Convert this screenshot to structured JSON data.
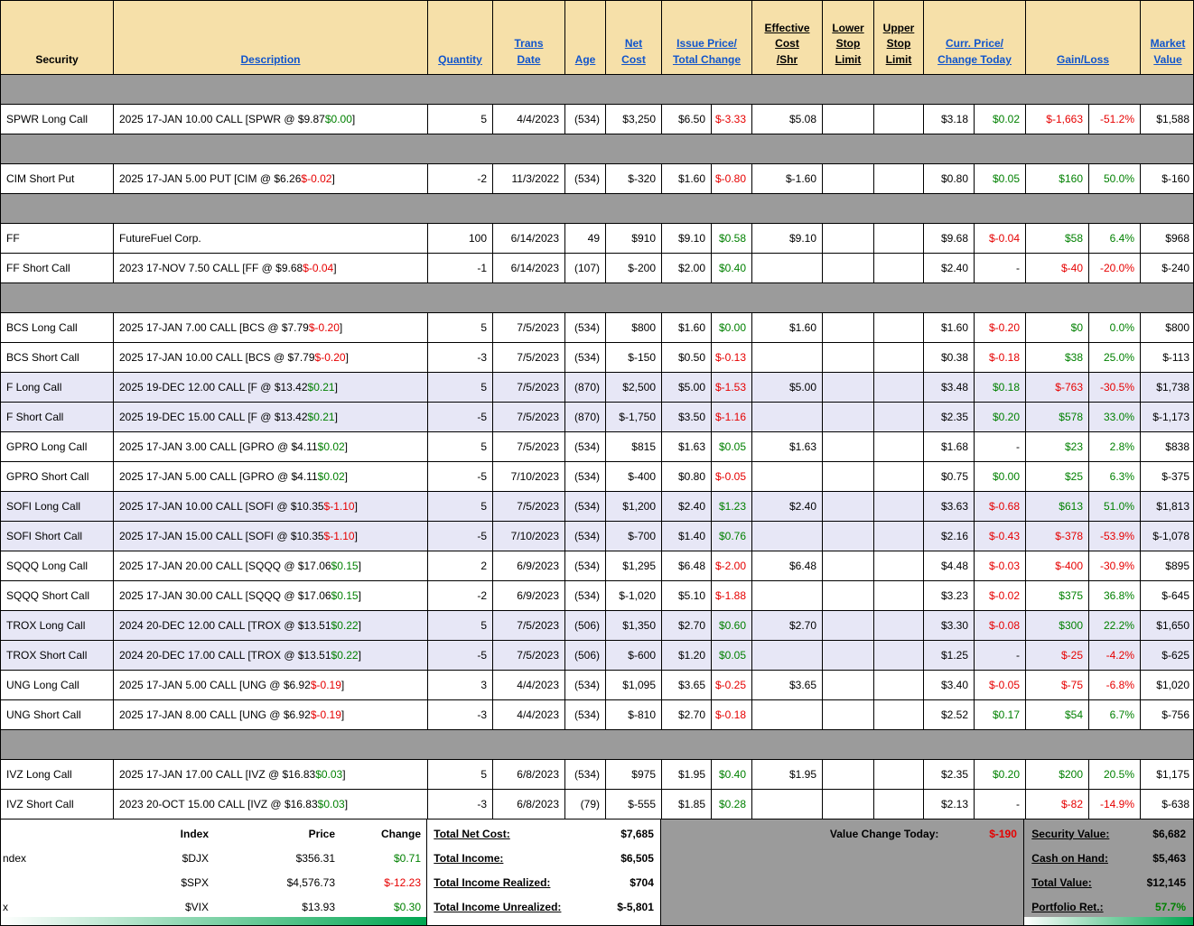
{
  "colors": {
    "pos": "#008000",
    "neg": "#e60000",
    "link": "#1155cc",
    "band": "#9b9b9b",
    "header_bg": "#f6e0a9",
    "lav": "#e7e7f6",
    "strip_green": "#00a651"
  },
  "header": {
    "columns": [
      {
        "label": "Security"
      },
      {
        "label": "Description"
      },
      {
        "label": "Quantity"
      },
      {
        "label": "Trans\nDate"
      },
      {
        "label": "Age"
      },
      {
        "label": "Net\nCost"
      },
      {
        "label": "Issue Price/\nTotal Change"
      },
      {
        "label": "Effective\nCost\n/Shr"
      },
      {
        "label": "Lower\nStop\nLimit"
      },
      {
        "label": "Upper\nStop\nLimit"
      },
      {
        "label": "Curr. Price/\nChange Today"
      },
      {
        "label": "Gain/Loss"
      },
      {
        "label": "Market\nValue"
      }
    ]
  },
  "rows": [
    {
      "type": "band"
    },
    {
      "bg": "white",
      "sec": "SPWR Long Call",
      "desc_pre": "2025 17-JAN 10.00 CALL [SPWR @ $9.87 ",
      "desc_chg": "$0.00",
      "desc_post": "]",
      "qty": "5",
      "date": "4/4/2023",
      "age": "(534)",
      "net": "$3,250",
      "iprice": "$6.50",
      "ichg": "$-3.33",
      "eff": "$5.08",
      "lower": "",
      "upper": "",
      "cprice": "$3.18",
      "cchg": "$0.02",
      "gain": "$-1,663",
      "gpct": "-51.2%",
      "mkt": "$1,588"
    },
    {
      "type": "band"
    },
    {
      "bg": "white",
      "sec": "CIM Short Put",
      "desc_pre": "2025 17-JAN 5.00 PUT [CIM @ $6.26 ",
      "desc_chg": "$-0.02",
      "desc_post": "]",
      "qty": "-2",
      "date": "11/3/2022",
      "age": "(534)",
      "net": "$-320",
      "iprice": "$1.60",
      "ichg": "$-0.80",
      "eff": "$-1.60",
      "lower": "",
      "upper": "",
      "cprice": "$0.80",
      "cchg": "$0.05",
      "gain": "$160",
      "gpct": "50.0%",
      "mkt": "$-160"
    },
    {
      "type": "band"
    },
    {
      "bg": "white",
      "sec": "FF",
      "desc_pre": "FutureFuel Corp.",
      "desc_chg": "",
      "desc_post": "",
      "qty": "100",
      "date": "6/14/2023",
      "age": "49",
      "net": "$910",
      "iprice": "$9.10",
      "ichg": "$0.58",
      "eff": "$9.10",
      "lower": "",
      "upper": "",
      "cprice": "$9.68",
      "cchg": "$-0.04",
      "gain": "$58",
      "gpct": "6.4%",
      "mkt": "$968"
    },
    {
      "bg": "white",
      "sec": "FF Short Call",
      "desc_pre": "2023 17-NOV 7.50 CALL [FF @ $9.68 ",
      "desc_chg": "$-0.04",
      "desc_post": "]",
      "qty": "-1",
      "date": "6/14/2023",
      "age": "(107)",
      "net": "$-200",
      "iprice": "$2.00",
      "ichg": "$0.40",
      "eff": "",
      "lower": "",
      "upper": "",
      "cprice": "$2.40",
      "cchg": "-",
      "gain": "$-40",
      "gpct": "-20.0%",
      "mkt": "$-240"
    },
    {
      "type": "band"
    },
    {
      "bg": "white",
      "sec": "BCS Long Call",
      "desc_pre": "2025 17-JAN 7.00 CALL [BCS @ $7.79 ",
      "desc_chg": "$-0.20",
      "desc_post": "]",
      "qty": "5",
      "date": "7/5/2023",
      "age": "(534)",
      "net": "$800",
      "iprice": "$1.60",
      "ichg": "$0.00",
      "eff": "$1.60",
      "lower": "",
      "upper": "",
      "cprice": "$1.60",
      "cchg": "$-0.20",
      "gain": "$0",
      "gpct": "0.0%",
      "mkt": "$800"
    },
    {
      "bg": "white",
      "sec": "BCS Short Call",
      "desc_pre": "2025 17-JAN 10.00 CALL [BCS @ $7.79 ",
      "desc_chg": "$-0.20",
      "desc_post": "]",
      "qty": "-3",
      "date": "7/5/2023",
      "age": "(534)",
      "net": "$-150",
      "iprice": "$0.50",
      "ichg": "$-0.13",
      "eff": "",
      "lower": "",
      "upper": "",
      "cprice": "$0.38",
      "cchg": "$-0.18",
      "gain": "$38",
      "gpct": "25.0%",
      "mkt": "$-113"
    },
    {
      "bg": "lavender",
      "sec": "F Long Call",
      "desc_pre": "2025 19-DEC 12.00 CALL [F @ $13.42 ",
      "desc_chg": "$0.21",
      "desc_post": "]",
      "qty": "5",
      "date": "7/5/2023",
      "age": "(870)",
      "net": "$2,500",
      "iprice": "$5.00",
      "ichg": "$-1.53",
      "eff": "$5.00",
      "lower": "",
      "upper": "",
      "cprice": "$3.48",
      "cchg": "$0.18",
      "gain": "$-763",
      "gpct": "-30.5%",
      "mkt": "$1,738"
    },
    {
      "bg": "lavender",
      "sec": "F Short Call",
      "desc_pre": "2025 19-DEC 15.00 CALL [F @ $13.42 ",
      "desc_chg": "$0.21",
      "desc_post": "]",
      "qty": "-5",
      "date": "7/5/2023",
      "age": "(870)",
      "net": "$-1,750",
      "iprice": "$3.50",
      "ichg": "$-1.16",
      "eff": "",
      "lower": "",
      "upper": "",
      "cprice": "$2.35",
      "cchg": "$0.20",
      "gain": "$578",
      "gpct": "33.0%",
      "mkt": "$-1,173"
    },
    {
      "bg": "white",
      "sec": "GPRO Long Call",
      "desc_pre": "2025 17-JAN 3.00 CALL [GPRO @ $4.11 ",
      "desc_chg": "$0.02",
      "desc_post": "]",
      "qty": "5",
      "date": "7/5/2023",
      "age": "(534)",
      "net": "$815",
      "iprice": "$1.63",
      "ichg": "$0.05",
      "eff": "$1.63",
      "lower": "",
      "upper": "",
      "cprice": "$1.68",
      "cchg": "-",
      "gain": "$23",
      "gpct": "2.8%",
      "mkt": "$838"
    },
    {
      "bg": "white",
      "sec": "GPRO Short Call",
      "desc_pre": "2025 17-JAN 5.00 CALL [GPRO @ $4.11 ",
      "desc_chg": "$0.02",
      "desc_post": "]",
      "qty": "-5",
      "date": "7/10/2023",
      "age": "(534)",
      "net": "$-400",
      "iprice": "$0.80",
      "ichg": "$-0.05",
      "eff": "",
      "lower": "",
      "upper": "",
      "cprice": "$0.75",
      "cchg": "$0.00",
      "gain": "$25",
      "gpct": "6.3%",
      "mkt": "$-375"
    },
    {
      "bg": "lavender",
      "sec": "SOFI Long Call",
      "desc_pre": "2025 17-JAN 10.00 CALL [SOFI @ $10.35 ",
      "desc_chg": "$-1.10",
      "desc_post": "]",
      "qty": "5",
      "date": "7/5/2023",
      "age": "(534)",
      "net": "$1,200",
      "iprice": "$2.40",
      "ichg": "$1.23",
      "eff": "$2.40",
      "lower": "",
      "upper": "",
      "cprice": "$3.63",
      "cchg": "$-0.68",
      "gain": "$613",
      "gpct": "51.0%",
      "mkt": "$1,813"
    },
    {
      "bg": "lavender",
      "sec": "SOFI Short Call",
      "desc_pre": "2025 17-JAN 15.00 CALL [SOFI @ $10.35 ",
      "desc_chg": "$-1.10",
      "desc_post": "]",
      "qty": "-5",
      "date": "7/10/2023",
      "age": "(534)",
      "net": "$-700",
      "iprice": "$1.40",
      "ichg": "$0.76",
      "eff": "",
      "lower": "",
      "upper": "",
      "cprice": "$2.16",
      "cchg": "$-0.43",
      "gain": "$-378",
      "gpct": "-53.9%",
      "mkt": "$-1,078"
    },
    {
      "bg": "white",
      "sec": "SQQQ Long Call",
      "desc_pre": "2025 17-JAN 20.00 CALL [SQQQ @ $17.06 ",
      "desc_chg": "$0.15",
      "desc_post": "]",
      "qty": "2",
      "date": "6/9/2023",
      "age": "(534)",
      "net": "$1,295",
      "iprice": "$6.48",
      "ichg": "$-2.00",
      "eff": "$6.48",
      "lower": "",
      "upper": "",
      "cprice": "$4.48",
      "cchg": "$-0.03",
      "gain": "$-400",
      "gpct": "-30.9%",
      "mkt": "$895"
    },
    {
      "bg": "white",
      "sec": "SQQQ Short Call",
      "desc_pre": "2025 17-JAN 30.00 CALL [SQQQ @ $17.06 ",
      "desc_chg": "$0.15",
      "desc_post": "]",
      "qty": "-2",
      "date": "6/9/2023",
      "age": "(534)",
      "net": "$-1,020",
      "iprice": "$5.10",
      "ichg": "$-1.88",
      "eff": "",
      "lower": "",
      "upper": "",
      "cprice": "$3.23",
      "cchg": "$-0.02",
      "gain": "$375",
      "gpct": "36.8%",
      "mkt": "$-645"
    },
    {
      "bg": "lavender",
      "sec": "TROX Long Call",
      "desc_pre": "2024 20-DEC 12.00 CALL [TROX @ $13.51 ",
      "desc_chg": "$0.22",
      "desc_post": "]",
      "qty": "5",
      "date": "7/5/2023",
      "age": "(506)",
      "net": "$1,350",
      "iprice": "$2.70",
      "ichg": "$0.60",
      "eff": "$2.70",
      "lower": "",
      "upper": "",
      "cprice": "$3.30",
      "cchg": "$-0.08",
      "gain": "$300",
      "gpct": "22.2%",
      "mkt": "$1,650"
    },
    {
      "bg": "lavender",
      "sec": "TROX Short Call",
      "desc_pre": "2024 20-DEC 17.00 CALL [TROX @ $13.51 ",
      "desc_chg": "$0.22",
      "desc_post": "]",
      "qty": "-5",
      "date": "7/5/2023",
      "age": "(506)",
      "net": "$-600",
      "iprice": "$1.20",
      "ichg": "$0.05",
      "eff": "",
      "lower": "",
      "upper": "",
      "cprice": "$1.25",
      "cchg": "-",
      "gain": "$-25",
      "gpct": "-4.2%",
      "mkt": "$-625"
    },
    {
      "bg": "white",
      "sec": "UNG Long Call",
      "desc_pre": "2025 17-JAN 5.00 CALL [UNG @ $6.92 ",
      "desc_chg": "$-0.19",
      "desc_post": "]",
      "qty": "3",
      "date": "4/4/2023",
      "age": "(534)",
      "net": "$1,095",
      "iprice": "$3.65",
      "ichg": "$-0.25",
      "eff": "$3.65",
      "lower": "",
      "upper": "",
      "cprice": "$3.40",
      "cchg": "$-0.05",
      "gain": "$-75",
      "gpct": "-6.8%",
      "mkt": "$1,020"
    },
    {
      "bg": "white",
      "sec": "UNG Short Call",
      "desc_pre": "2025 17-JAN 8.00 CALL [UNG @ $6.92 ",
      "desc_chg": "$-0.19",
      "desc_post": "]",
      "qty": "-3",
      "date": "4/4/2023",
      "age": "(534)",
      "net": "$-810",
      "iprice": "$2.70",
      "ichg": "$-0.18",
      "eff": "",
      "lower": "",
      "upper": "",
      "cprice": "$2.52",
      "cchg": "$0.17",
      "gain": "$54",
      "gpct": "6.7%",
      "mkt": "$-756"
    },
    {
      "type": "band"
    },
    {
      "bg": "white",
      "sec": "IVZ Long Call",
      "desc_pre": "2025 17-JAN 17.00 CALL [IVZ @ $16.83 ",
      "desc_chg": "$0.03",
      "desc_post": "]",
      "qty": "5",
      "date": "6/8/2023",
      "age": "(534)",
      "net": "$975",
      "iprice": "$1.95",
      "ichg": "$0.40",
      "eff": "$1.95",
      "lower": "",
      "upper": "",
      "cprice": "$2.35",
      "cchg": "$0.20",
      "gain": "$200",
      "gpct": "20.5%",
      "mkt": "$1,175"
    },
    {
      "bg": "white",
      "sec": "IVZ Short Call",
      "desc_pre": "2023 20-OCT 15.00 CALL [IVZ @ $16.83 ",
      "desc_chg": "$0.03",
      "desc_post": "]",
      "qty": "-3",
      "date": "6/8/2023",
      "age": "(79)",
      "net": "$-555",
      "iprice": "$1.85",
      "ichg": "$0.28",
      "eff": "",
      "lower": "",
      "upper": "",
      "cprice": "$2.13",
      "cchg": "-",
      "gain": "$-82",
      "gpct": "-14.9%",
      "mkt": "$-638"
    }
  ],
  "footer": {
    "index_table": {
      "header": {
        "index": "Index",
        "price": "Price",
        "change": "Change"
      },
      "rows": [
        {
          "label": "ndex",
          "symbol": "$DJX",
          "price": "$356.31",
          "change": "$0.71"
        },
        {
          "label": "",
          "symbol": "$SPX",
          "price": "$4,576.73",
          "change": "$-12.23"
        },
        {
          "label": "x",
          "symbol": "$VIX",
          "price": "$13.93",
          "change": "$0.30"
        }
      ]
    },
    "totals": [
      {
        "label": "Total Net Cost:",
        "value": "$7,685"
      },
      {
        "label": "Total Income:",
        "value": "$6,505"
      },
      {
        "label": "Total Income Realized:",
        "value": "$704"
      },
      {
        "label": "Total Income Unrealized:",
        "value": "$-5,801"
      }
    ],
    "value_change": {
      "label": "Value Change Today:",
      "value": "$-190"
    },
    "summary": [
      {
        "label": "Security Value:",
        "value": "$6,682"
      },
      {
        "label": "Cash on Hand:",
        "value": "$5,463"
      },
      {
        "label": "Total Value:",
        "value": "$12,145"
      },
      {
        "label": "Portfolio Ret.:",
        "value": "57.7%"
      }
    ]
  }
}
